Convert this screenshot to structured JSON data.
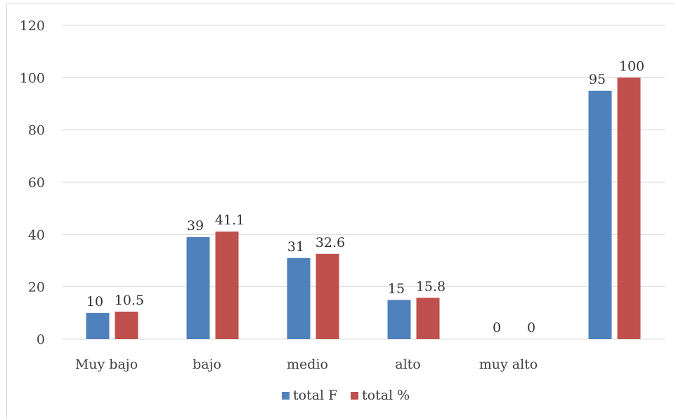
{
  "chart_data": {
    "type": "bar",
    "categories": [
      "Muy bajo",
      "bajo",
      "medio",
      "alto",
      "muy alto",
      ""
    ],
    "series": [
      {
        "name": "total F",
        "values": [
          10,
          39,
          31,
          15,
          0,
          95
        ],
        "color": "#4f81bd"
      },
      {
        "name": "total %",
        "values": [
          10.5,
          41.1,
          32.6,
          15.8,
          0,
          100
        ],
        "color": "#c0504d"
      }
    ],
    "value_labels": [
      [
        "10",
        "39",
        "31",
        "15",
        "0",
        "95"
      ],
      [
        "10.5",
        "41.1",
        "32.6",
        "15.8",
        "0",
        "100"
      ]
    ],
    "ylim": [
      0,
      120
    ],
    "yticks": [
      0,
      20,
      40,
      60,
      80,
      100,
      120
    ],
    "grid": true,
    "legend_position": "bottom",
    "gridline_color": "#d9d9d9"
  }
}
